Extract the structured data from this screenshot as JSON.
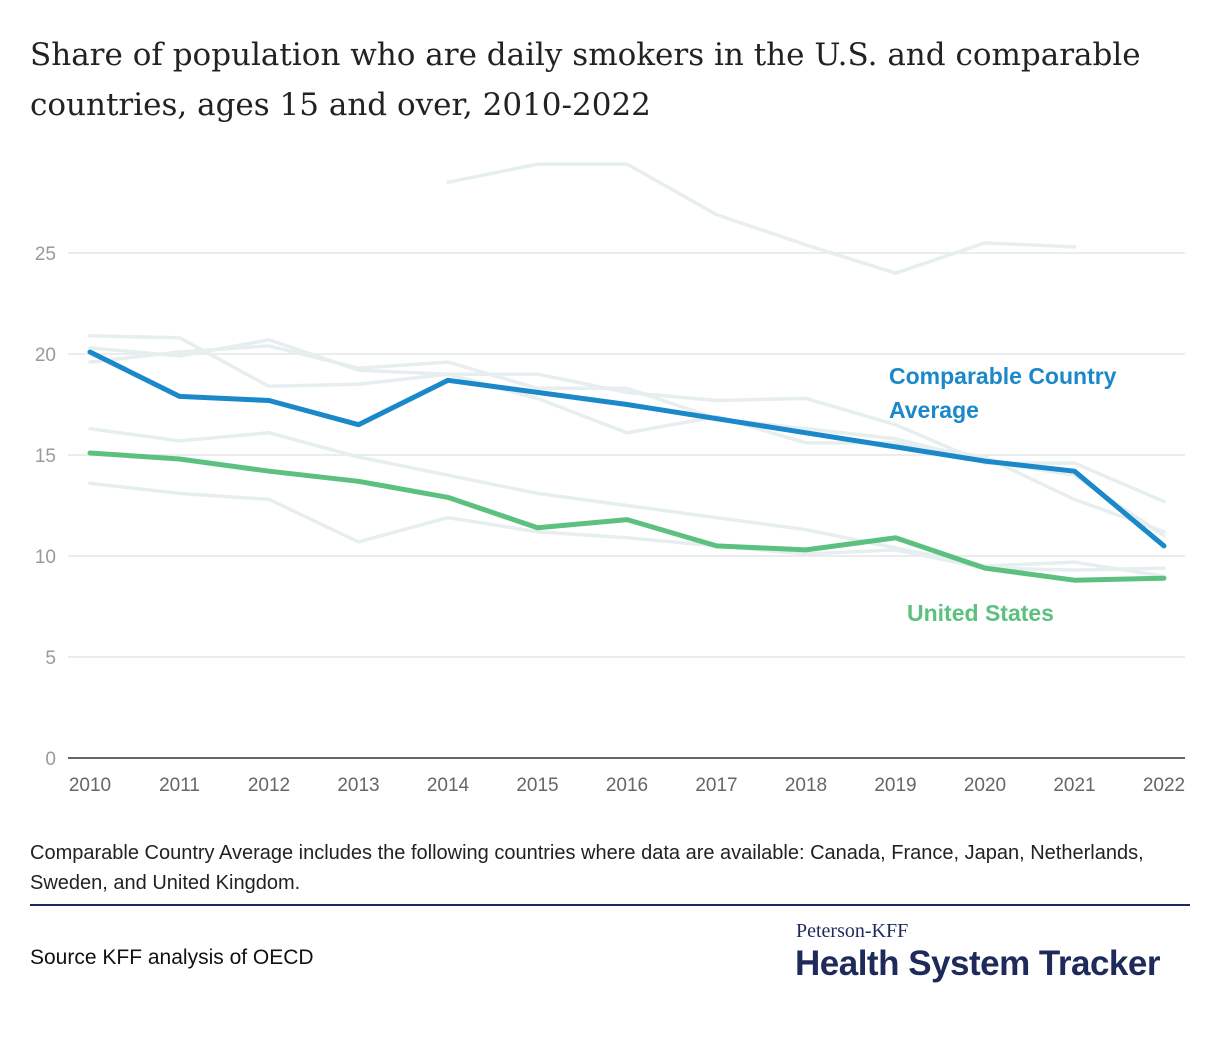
{
  "header": {
    "title": "Share of population who are daily smokers in the U.S. and comparable countries, ages 15 and over, 2010-2022"
  },
  "chart_data": {
    "type": "line",
    "title": "Share of population who are daily smokers in the U.S. and comparable countries, ages 15 and over, 2010-2022",
    "xlabel": "",
    "ylabel": "",
    "x": [
      2010,
      2011,
      2012,
      2013,
      2014,
      2015,
      2016,
      2017,
      2018,
      2019,
      2020,
      2021,
      2022
    ],
    "ylim": [
      0,
      30
    ],
    "yticks": [
      0,
      5,
      10,
      15,
      20,
      25
    ],
    "grid": true,
    "series": [
      {
        "name": "Comparable Country Average",
        "color": "#1b88c9",
        "emphasis": true,
        "values": [
          20.1,
          17.9,
          17.7,
          16.5,
          18.7,
          18.1,
          17.5,
          16.8,
          16.1,
          15.4,
          14.7,
          14.2,
          10.5
        ]
      },
      {
        "name": "United States",
        "color": "#5cc17f",
        "emphasis": true,
        "values": [
          15.1,
          14.8,
          14.2,
          13.7,
          12.9,
          11.4,
          11.8,
          10.5,
          10.3,
          10.9,
          9.4,
          8.8,
          8.9
        ]
      },
      {
        "color": "#e6eef0",
        "emphasis": false,
        "values": [
          null,
          null,
          null,
          null,
          28.5,
          29.4,
          29.4,
          26.9,
          25.4,
          24.0,
          25.5,
          25.3,
          null
        ]
      },
      {
        "color": "#e6eef0",
        "emphasis": false,
        "values": [
          20.9,
          20.8,
          18.4,
          18.5,
          19.0,
          19.0,
          18.1,
          17.7,
          17.8,
          16.5,
          14.6,
          14.6,
          12.7
        ]
      },
      {
        "color": "#e6eef0",
        "emphasis": false,
        "values": [
          20.3,
          19.9,
          20.7,
          19.2,
          19.0,
          17.8,
          16.1,
          16.9,
          15.6,
          15.6,
          14.9,
          12.8,
          11.2
        ]
      },
      {
        "color": "#e6eef0",
        "emphasis": false,
        "values": [
          19.6,
          20.1,
          20.4,
          19.3,
          19.6,
          18.3,
          18.3,
          16.8,
          16.3,
          15.8,
          14.7,
          14.0,
          11.0
        ]
      },
      {
        "color": "#e6eef0",
        "emphasis": false,
        "values": [
          16.3,
          15.7,
          16.1,
          14.9,
          14.0,
          13.1,
          12.5,
          11.9,
          11.3,
          10.4,
          9.5,
          9.7,
          9.0
        ]
      },
      {
        "color": "#e6eef0",
        "emphasis": false,
        "values": [
          13.6,
          13.1,
          12.8,
          10.7,
          11.9,
          11.2,
          10.9,
          10.5,
          10.1,
          10.3,
          9.4,
          9.3,
          9.4
        ]
      }
    ],
    "annotations": [
      {
        "text": "Comparable Country",
        "series": "Comparable Country Average"
      },
      {
        "text": "Average",
        "series": "Comparable Country Average"
      },
      {
        "text": "United States",
        "series": "United States"
      }
    ]
  },
  "footer": {
    "note": "Comparable Country Average includes the following countries where data are available: Canada, France, Japan, Netherlands, Sweden, and United Kingdom.",
    "source": "Source KFF analysis of OECD",
    "brand_top": "Peterson-KFF",
    "brand_main": "Health System Tracker"
  }
}
